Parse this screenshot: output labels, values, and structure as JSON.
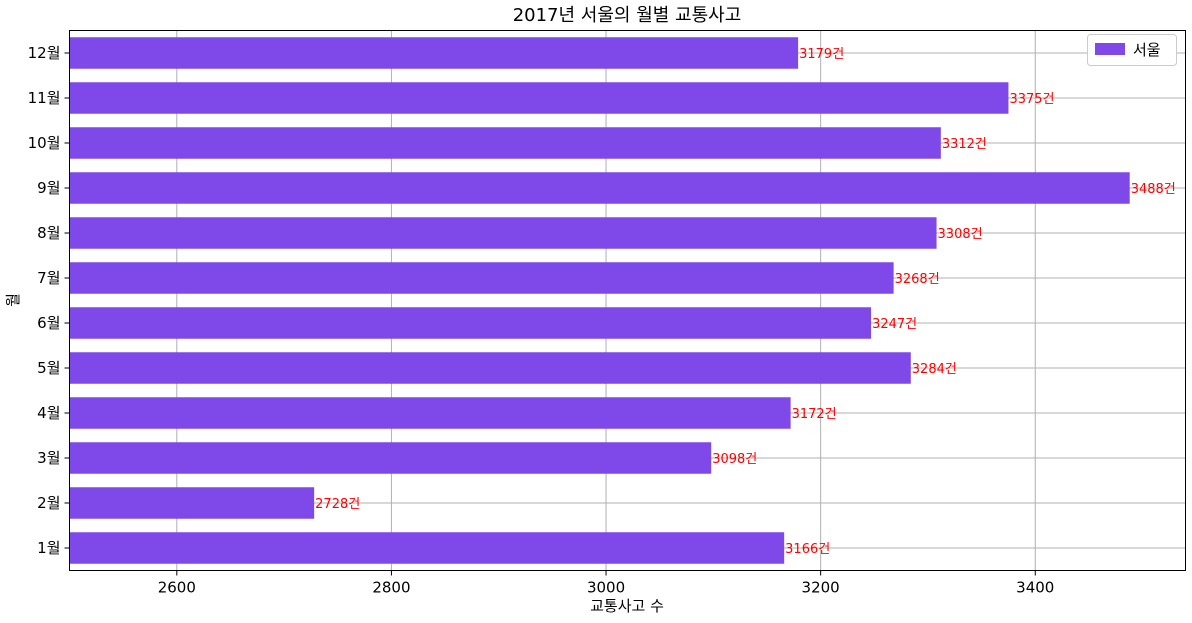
{
  "chart_data": {
    "type": "bar",
    "orientation": "horizontal",
    "title": "2017년 서울의 월별 교통사고",
    "xlabel": "교통사고 수",
    "ylabel": "월",
    "categories": [
      "1월",
      "2월",
      "3월",
      "4월",
      "5월",
      "6월",
      "7월",
      "8월",
      "9월",
      "10월",
      "11월",
      "12월"
    ],
    "series": [
      {
        "name": "서울",
        "values": [
          3166,
          2728,
          3098,
          3172,
          3284,
          3247,
          3268,
          3308,
          3488,
          3312,
          3375,
          3179
        ],
        "color": "#7f48e8"
      }
    ],
    "data_labels": [
      "3166건",
      "2728건",
      "3098건",
      "3172건",
      "3284건",
      "3247건",
      "3268건",
      "3308건",
      "3488건",
      "3312건",
      "3375건",
      "3179건"
    ],
    "data_label_color": "#ff0000",
    "xlim": [
      2500,
      3540
    ],
    "xticks": [
      2600,
      2800,
      3000,
      3200,
      3400
    ],
    "xtick_labels": [
      "2600",
      "2800",
      "3000",
      "3200",
      "3400"
    ],
    "grid": true,
    "legend_position": "top-right"
  }
}
